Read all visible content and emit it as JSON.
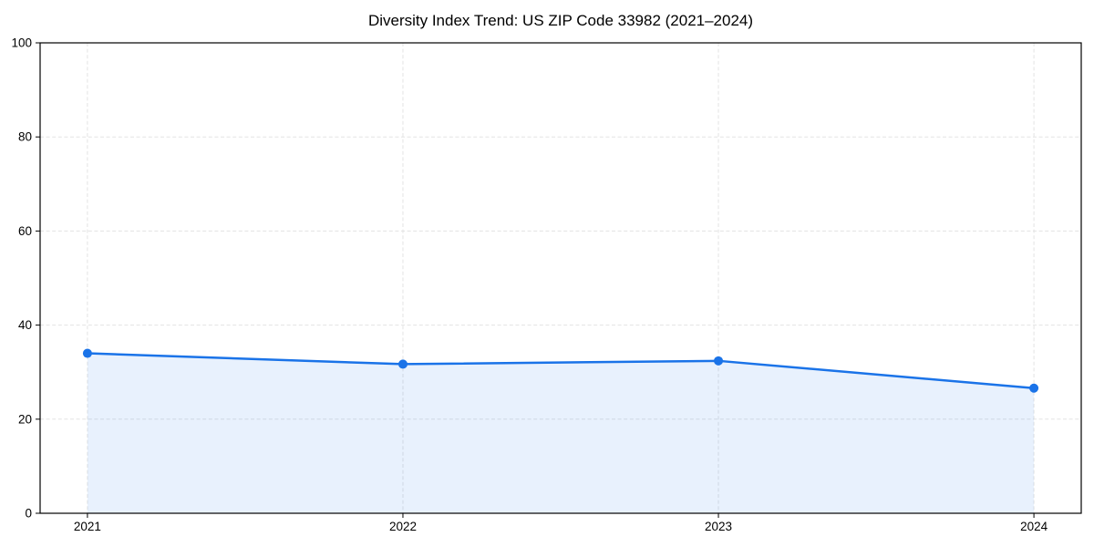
{
  "chart_data": {
    "type": "line",
    "title": "Diversity Index Trend: US ZIP Code 33982 (2021–2024)",
    "x": [
      2021,
      2022,
      2023,
      2024
    ],
    "x_tick_labels": [
      "2021",
      "2022",
      "2023",
      "2024"
    ],
    "series": [
      {
        "name": "Diversity Index",
        "values": [
          34.0,
          31.7,
          32.4,
          26.6
        ],
        "line_color": "#1a73e8",
        "marker": "circle",
        "area_fill": true,
        "fill_opacity": 0.1
      }
    ],
    "xlabel": "",
    "ylabel": "",
    "ylim": [
      0,
      100
    ],
    "yticks": [
      0,
      20,
      40,
      60,
      80,
      100
    ],
    "grid": true,
    "grid_style": "dashed",
    "grid_color": "#e3e3e3",
    "spine_color": "#000000",
    "legend": "none",
    "background_color": "#ffffff"
  }
}
